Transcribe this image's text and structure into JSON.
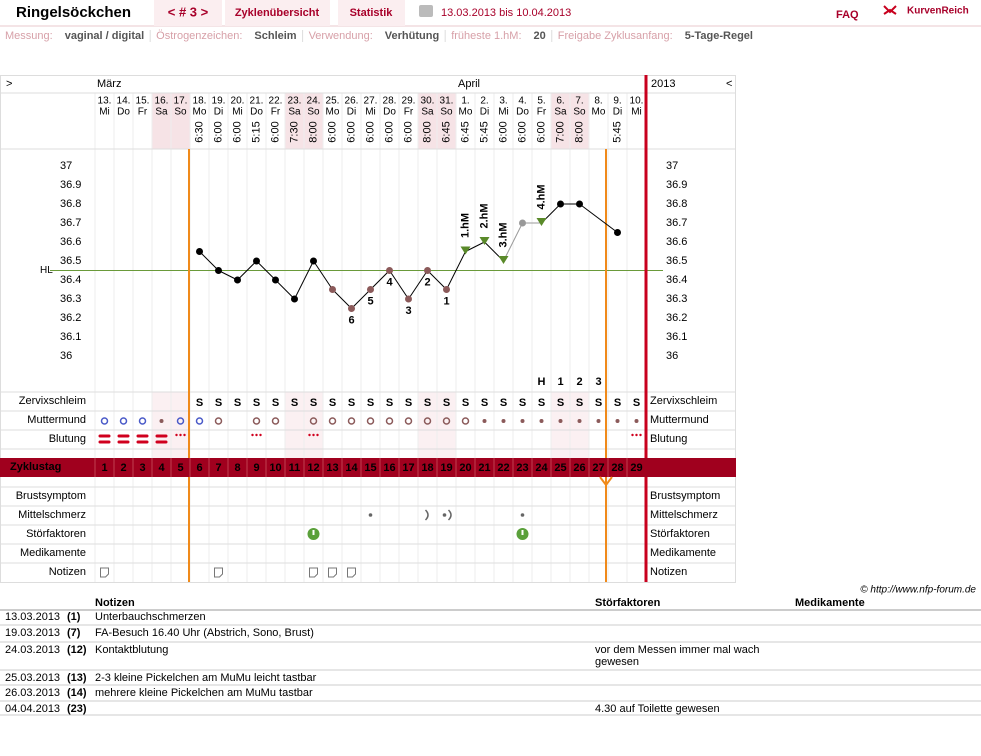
{
  "header": {
    "title": "Ringelsöckchen",
    "nav": "< # 3 >",
    "tabs": [
      "Zyklenübersicht",
      "Statistik"
    ],
    "range": "13.03.2013 bis 10.04.2013",
    "faq": "FAQ",
    "brand": "KurvenReich"
  },
  "info": [
    {
      "label": "Messung:",
      "value": "vaginal / digital"
    },
    {
      "label": "Östrogenzeichen:",
      "value": "Schleim"
    },
    {
      "label": "Verwendung:",
      "value": "Verhütung"
    },
    {
      "label": "früheste 1.hM:",
      "value": "20"
    },
    {
      "label": "Freigabe Zyklusanfang:",
      "value": "5-Tage-Regel"
    }
  ],
  "chart_data": {
    "type": "line",
    "nav_left": ">",
    "nav_right": "<",
    "year": "2013",
    "months": [
      "März",
      "April"
    ],
    "categories": [
      "13.",
      "14.",
      "15.",
      "16.",
      "17.",
      "18.",
      "19.",
      "20.",
      "21.",
      "22.",
      "23.",
      "24.",
      "25.",
      "26.",
      "27.",
      "28.",
      "29.",
      "30.",
      "31.",
      "1.",
      "2.",
      "3.",
      "4.",
      "5.",
      "6.",
      "7.",
      "8.",
      "9.",
      "10."
    ],
    "weekdays": [
      "Mi",
      "Do",
      "Fr",
      "Sa",
      "So",
      "Mo",
      "Di",
      "Mi",
      "Do",
      "Fr",
      "Sa",
      "So",
      "Mo",
      "Di",
      "Mi",
      "Do",
      "Fr",
      "Sa",
      "So",
      "Mo",
      "Di",
      "Mi",
      "Do",
      "Fr",
      "Sa",
      "So",
      "Mo",
      "Di",
      "Mi"
    ],
    "times": [
      null,
      null,
      null,
      null,
      null,
      "6:30",
      "6:00",
      "6:00",
      "5:15",
      "6:00",
      "7:30",
      "8:00",
      "6:00",
      "6:00",
      "6:00",
      "6:00",
      "6:00",
      "8:00",
      "6:45",
      "6:45",
      "5:45",
      "6:00",
      "6:00",
      "6:00",
      "7:00",
      "8:00",
      null,
      "5:45",
      null
    ],
    "values": [
      null,
      null,
      null,
      null,
      null,
      36.55,
      36.45,
      36.4,
      36.5,
      36.4,
      36.3,
      36.5,
      36.35,
      36.25,
      36.35,
      36.45,
      36.3,
      36.45,
      36.35,
      36.55,
      36.6,
      36.5,
      36.7,
      36.7,
      36.8,
      36.8,
      null,
      36.65,
      null
    ],
    "colors": [
      null,
      null,
      null,
      null,
      null,
      "#000",
      "#000",
      "#000",
      "#000",
      "#000",
      "#000",
      "#000",
      "#8b5a5a",
      "#8b5a5a",
      "#8b5a5a",
      "#8b5a5a",
      "#8b5a5a",
      "#8b5a5a",
      "#8b5a5a",
      "#5a8a2a",
      "#5a8a2a",
      "#5a8a2a",
      "#999",
      "#5a8a2a",
      "#000",
      "#000",
      null,
      "#000",
      null
    ],
    "low_labels": [
      null,
      null,
      null,
      null,
      null,
      null,
      null,
      null,
      null,
      null,
      null,
      null,
      null,
      "6",
      "5",
      "4",
      "3",
      "2",
      "1",
      null,
      null,
      null,
      null,
      null,
      null,
      null,
      null,
      null,
      null
    ],
    "hm_labels": [
      null,
      null,
      null,
      null,
      null,
      null,
      null,
      null,
      null,
      null,
      null,
      null,
      null,
      null,
      null,
      null,
      null,
      null,
      null,
      "1.hM",
      "2.hM",
      "3.hM",
      null,
      "4.hM",
      null,
      null,
      null,
      null,
      null
    ],
    "h_labels": [
      null,
      null,
      null,
      null,
      null,
      null,
      null,
      null,
      null,
      null,
      null,
      null,
      null,
      null,
      null,
      null,
      null,
      null,
      null,
      null,
      null,
      null,
      null,
      "H",
      "1",
      "2",
      "3",
      null,
      null
    ],
    "coverline": {
      "label": "HL",
      "value": 36.45
    },
    "ylim": [
      35.8,
      37.1
    ],
    "yticks": [
      36,
      36.1,
      36.2,
      36.3,
      36.4,
      36.5,
      36.6,
      36.7,
      36.8,
      36.9,
      37
    ],
    "zervix": [
      null,
      null,
      null,
      null,
      null,
      "S",
      "S",
      "S",
      "S",
      "S",
      "S",
      "S",
      "S",
      "S",
      "S",
      "S",
      "S",
      "S",
      "S",
      "S",
      "S",
      "S",
      "S",
      "S",
      "S",
      "S",
      "S",
      "S",
      "S"
    ],
    "rows": [
      "Zervixschleim",
      "Muttermund",
      "Blutung",
      "Zyklustag",
      "Brustsymptom",
      "Mittelschmerz",
      "Störfaktoren",
      "Medikamente",
      "Notizen"
    ],
    "cycle_days": [
      1,
      2,
      3,
      4,
      5,
      6,
      7,
      8,
      9,
      10,
      11,
      12,
      13,
      14,
      15,
      16,
      17,
      18,
      19,
      20,
      21,
      22,
      23,
      24,
      25,
      26,
      27,
      28,
      29
    ]
  },
  "copyright": "© http://www.nfp-forum.de",
  "notes": {
    "columns": [
      "Notizen",
      "Störfaktoren",
      "Medikamente"
    ],
    "rows": [
      [
        "13.03.2013",
        "(1)",
        "Unterbauchschmerzen",
        ""
      ],
      [
        "19.03.2013",
        "(7)",
        "FA-Besuch 16.40 Uhr (Abstrich, Sono, Brust)",
        ""
      ],
      [
        "24.03.2013",
        "(12)",
        "Kontaktblutung",
        "vor dem Messen immer mal wach gewesen"
      ],
      [
        "25.03.2013",
        "(13)",
        "2-3 kleine Pickelchen am MuMu leicht tastbar",
        ""
      ],
      [
        "26.03.2013",
        "(14)",
        "mehrere kleine Pickelchen am MuMu tastbar",
        ""
      ],
      [
        "04.04.2013",
        "(23)",
        "",
        "4.30 auf Toilette gewesen"
      ]
    ]
  }
}
